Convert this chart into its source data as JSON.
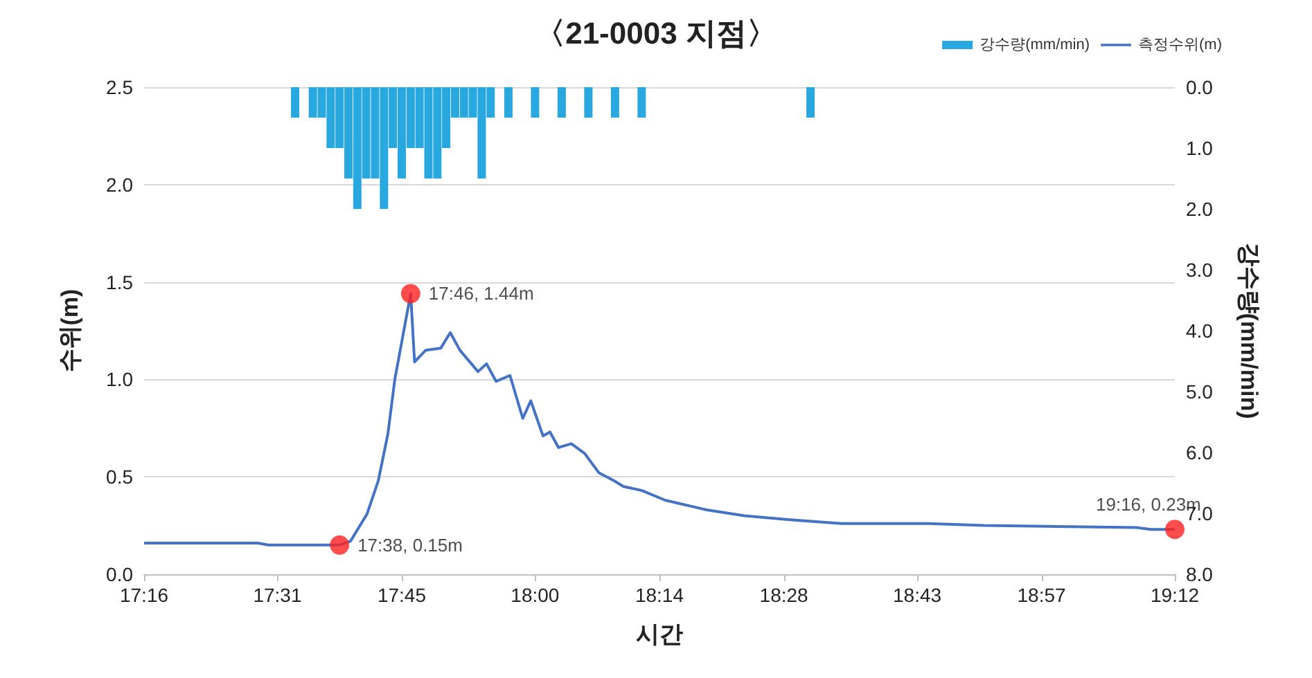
{
  "chart_data": {
    "type": "line",
    "title": "〈21-0003 지점〉",
    "xlabel": "시간",
    "ylabel": "수위(m)",
    "y2label": "강수량(mm/min)",
    "xlim": [
      17.2667,
      19.2
    ],
    "xticks": [
      {
        "value": 17.2667,
        "label": "17:16"
      },
      {
        "value": 17.5167,
        "label": "17:31"
      },
      {
        "value": 17.75,
        "label": "17:45"
      },
      {
        "value": 18,
        "label": "18:00"
      },
      {
        "value": 18.2333,
        "label": "18:14"
      },
      {
        "value": 18.4667,
        "label": "18:28"
      },
      {
        "value": 18.7167,
        "label": "18:43"
      },
      {
        "value": 18.95,
        "label": "18:57"
      },
      {
        "value": 19.2,
        "label": "19:12"
      }
    ],
    "ylim": [
      0,
      2.5
    ],
    "yticks": [
      {
        "value": 0,
        "label": "0.0"
      },
      {
        "value": 0.5,
        "label": "0.5"
      },
      {
        "value": 1,
        "label": "1.0"
      },
      {
        "value": 1.5,
        "label": "1.5"
      },
      {
        "value": 2,
        "label": "2.0"
      },
      {
        "value": 2.5,
        "label": "2.5"
      }
    ],
    "y2lim": [
      8,
      0
    ],
    "y2ticks": [
      {
        "value": 0,
        "label": "0.0"
      },
      {
        "value": 1,
        "label": "1.0"
      },
      {
        "value": 2,
        "label": "2.0"
      },
      {
        "value": 3,
        "label": "3.0"
      },
      {
        "value": 4,
        "label": "4.0"
      },
      {
        "value": 5,
        "label": "5.0"
      },
      {
        "value": 6,
        "label": "6.0"
      },
      {
        "value": 7,
        "label": "7.0"
      },
      {
        "value": 8,
        "label": "8.0"
      }
    ],
    "grid": "y",
    "legend": "top right",
    "series": [
      {
        "name": "강수량(mm/min)",
        "type": "bar",
        "axis": "y2",
        "color": "#29a8e0",
        "x": [
          17.55,
          17.5833,
          17.6,
          17.6167,
          17.6333,
          17.65,
          17.6667,
          17.6833,
          17.7,
          17.7167,
          17.7333,
          17.75,
          17.7667,
          17.7833,
          17.8,
          17.8167,
          17.8333,
          17.85,
          17.8667,
          17.8833,
          17.9,
          17.9167,
          17.95,
          18,
          18.05,
          18.1,
          18.15,
          18.2,
          18.5167
        ],
        "values": [
          0.5,
          0.5,
          0.5,
          1,
          1,
          1.5,
          2,
          1.5,
          1.5,
          2,
          1,
          1.5,
          1,
          1,
          1.5,
          1.5,
          1,
          0.5,
          0.5,
          0.5,
          1.5,
          0.5,
          0.5,
          0.5,
          0.5,
          0.5,
          0.5,
          0.5,
          0.5
        ]
      },
      {
        "name": "측정수위(m)",
        "color": "#4472c4",
        "marker": "none",
        "x": [
          17.2667,
          17.48,
          17.5,
          17.6333,
          17.654,
          17.685,
          17.706,
          17.724,
          17.737,
          17.7667,
          17.774,
          17.795,
          17.823,
          17.841,
          17.859,
          17.893,
          17.909,
          17.927,
          17.953,
          17.977,
          17.992,
          18.015,
          18.028,
          18.044,
          18.068,
          18.093,
          18.12,
          18.148,
          18.166,
          18.2,
          18.244,
          18.322,
          18.393,
          18.478,
          18.575,
          18.738,
          18.842,
          19.128,
          19.155,
          19.2
        ],
        "values": [
          0.16,
          0.16,
          0.15,
          0.15,
          0.17,
          0.31,
          0.48,
          0.72,
          1.0,
          1.44,
          1.09,
          1.15,
          1.16,
          1.24,
          1.15,
          1.04,
          1.08,
          0.99,
          1.02,
          0.8,
          0.89,
          0.71,
          0.73,
          0.65,
          0.67,
          0.62,
          0.52,
          0.48,
          0.45,
          0.43,
          0.38,
          0.33,
          0.3,
          0.28,
          0.26,
          0.26,
          0.25,
          0.24,
          0.23,
          0.23
        ]
      },
      {
        "type": "scatter",
        "color": "#ff2020",
        "marker": "circle",
        "x": [
          17.6333,
          17.7667,
          19.2
        ],
        "values": [
          0.15,
          1.44,
          0.23
        ],
        "value_labels": [
          "17:38, 0.15m",
          "17:46, 1.44m",
          "19:16, 0.23m"
        ]
      }
    ]
  }
}
